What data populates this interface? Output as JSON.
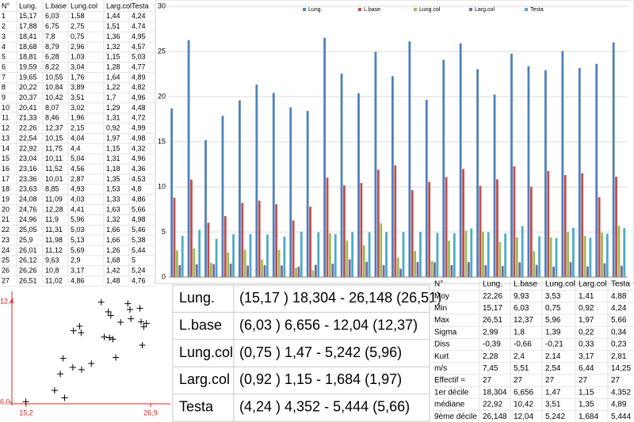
{
  "data_table": {
    "headers": [
      "N°",
      "Lung.",
      "L.base",
      "Lung.col",
      "Larg.col",
      "Testa"
    ],
    "rows": [
      [
        "1",
        "15,17",
        "6,03",
        "1,58",
        "1,44",
        "4,24"
      ],
      [
        "2",
        "17,88",
        "6,75",
        "2,75",
        "1,51",
        "4,74"
      ],
      [
        "3",
        "18,41",
        "7,8",
        "0,75",
        "1,36",
        "4,95"
      ],
      [
        "4",
        "18,68",
        "8,79",
        "2,96",
        "1,32",
        "4,57"
      ],
      [
        "5",
        "18,81",
        "6,28",
        "1,03",
        "1,15",
        "5,03"
      ],
      [
        "6",
        "19,59",
        "8,22",
        "3,04",
        "1,28",
        "4,77"
      ],
      [
        "7",
        "19,65",
        "10,55",
        "1,76",
        "1,64",
        "4,89"
      ],
      [
        "8",
        "20,22",
        "10,84",
        "3,89",
        "1,22",
        "4,82"
      ],
      [
        "9",
        "20,37",
        "10,42",
        "3,51",
        "1,7",
        "4,96"
      ],
      [
        "10",
        "20,41",
        "8,07",
        "3,02",
        "1,29",
        "4,48"
      ],
      [
        "11",
        "21,33",
        "8,46",
        "1,96",
        "1,31",
        "4,72"
      ],
      [
        "12",
        "22,26",
        "12,37",
        "2,15",
        "0,92",
        "4,99"
      ],
      [
        "13",
        "22,54",
        "10,15",
        "4,04",
        "1,97",
        "4,98"
      ],
      [
        "14",
        "22,92",
        "11,75",
        "4,4",
        "1,15",
        "4,32"
      ],
      [
        "15",
        "23,04",
        "10,11",
        "5,04",
        "1,31",
        "4,96"
      ],
      [
        "16",
        "23,16",
        "11,52",
        "4,56",
        "1,18",
        "4,36"
      ],
      [
        "17",
        "23,36",
        "10,01",
        "2,87",
        "1,35",
        "4,53"
      ],
      [
        "18",
        "23,63",
        "8,85",
        "4,93",
        "1,53",
        "4,8"
      ],
      [
        "19",
        "24,08",
        "11,09",
        "4,03",
        "1,33",
        "4,86"
      ],
      [
        "20",
        "24,76",
        "12,28",
        "4,41",
        "1,63",
        "5,66"
      ],
      [
        "21",
        "24,96",
        "11,9",
        "5,96",
        "1,32",
        "4,98"
      ],
      [
        "22",
        "25,05",
        "11,31",
        "5,03",
        "1,66",
        "5,46"
      ],
      [
        "23",
        "25,9",
        "11,98",
        "5,13",
        "1,66",
        "5,38"
      ],
      [
        "24",
        "26,01",
        "11,12",
        "5,69",
        "1,26",
        "5,44"
      ],
      [
        "25",
        "26,12",
        "9,63",
        "2,9",
        "1,68",
        "5"
      ],
      [
        "26",
        "26,26",
        "10,8",
        "3,17",
        "1,42",
        "5,24"
      ],
      [
        "27",
        "26,51",
        "11,02",
        "4,86",
        "1,48",
        "4,76"
      ]
    ]
  },
  "chart_data": [
    {
      "type": "bar",
      "ylim": [
        0,
        30
      ],
      "yticks": [
        0,
        5,
        10,
        15,
        20,
        25,
        30
      ],
      "grid": true,
      "legend": "top",
      "series": [
        {
          "name": "Lung.",
          "color": "#4f81bd",
          "values": [
            18.68,
            26.26,
            15.17,
            17.88,
            19.59,
            21.33,
            20.41,
            18.81,
            18.41,
            26.51,
            22.54,
            20.37,
            24.96,
            22.26,
            26.12,
            19.65,
            24.08,
            25.9,
            23.04,
            20.22,
            24.76,
            23.36,
            22.92,
            25.05,
            23.16,
            23.63,
            26.01
          ]
        },
        {
          "name": "L.base",
          "color": "#c0504d",
          "values": [
            8.79,
            10.8,
            6.03,
            6.75,
            8.22,
            8.46,
            8.07,
            6.28,
            7.8,
            11.02,
            10.15,
            10.42,
            11.9,
            12.37,
            9.63,
            10.55,
            11.09,
            11.98,
            10.11,
            10.84,
            12.28,
            10.01,
            11.75,
            11.31,
            11.52,
            8.85,
            11.12
          ]
        },
        {
          "name": "Lung.col",
          "color": "#9bbb59",
          "values": [
            2.96,
            3.17,
            1.58,
            2.75,
            3.04,
            1.96,
            3.02,
            1.03,
            0.75,
            4.86,
            4.04,
            3.51,
            5.96,
            2.15,
            2.9,
            1.76,
            4.03,
            5.13,
            5.04,
            3.89,
            4.41,
            2.87,
            4.4,
            5.03,
            4.56,
            4.93,
            5.69
          ]
        },
        {
          "name": "Larg.col",
          "color": "#8064a2",
          "values": [
            1.32,
            1.42,
            1.44,
            1.51,
            1.28,
            1.31,
            1.29,
            1.15,
            1.36,
            1.48,
            1.97,
            1.7,
            1.32,
            0.92,
            1.68,
            1.64,
            1.33,
            1.66,
            1.31,
            1.22,
            1.63,
            1.35,
            1.15,
            1.66,
            1.18,
            1.53,
            1.26
          ]
        },
        {
          "name": "Testa",
          "color": "#4bacc6",
          "values": [
            4.57,
            5.24,
            4.24,
            4.74,
            4.77,
            4.72,
            4.48,
            5.03,
            4.95,
            4.76,
            4.98,
            4.96,
            4.98,
            4.99,
            5,
            4.89,
            4.86,
            5.38,
            4.96,
            4.82,
            5.66,
            4.53,
            4.32,
            5.46,
            4.36,
            4.8,
            5.44
          ]
        }
      ]
    },
    {
      "type": "scatter",
      "color": "#000000",
      "axis_color": "#e02020",
      "xlim": [
        15.2,
        26.9
      ],
      "xticks": [
        {
          "value": 15.2,
          "label": "15,2"
        },
        {
          "value": 26.9,
          "label": "26,9"
        }
      ],
      "ylim": [
        6.0,
        12.4
      ],
      "yticks": [
        {
          "value": 6.0,
          "label": "6,0"
        },
        {
          "value": 12.4,
          "label": "12,4"
        }
      ],
      "x": [
        15.17,
        17.88,
        18.41,
        18.68,
        18.81,
        19.59,
        19.65,
        20.22,
        20.37,
        20.41,
        21.33,
        22.26,
        22.54,
        22.92,
        23.04,
        23.16,
        23.36,
        23.63,
        24.08,
        24.76,
        24.96,
        25.05,
        25.9,
        26.01,
        26.12,
        26.26,
        26.51
      ],
      "values": [
        6.03,
        6.75,
        7.8,
        8.79,
        6.28,
        8.22,
        10.55,
        10.84,
        10.42,
        8.07,
        8.46,
        12.37,
        10.15,
        11.75,
        10.11,
        11.52,
        10.01,
        8.85,
        11.09,
        12.28,
        11.9,
        11.31,
        11.98,
        11.12,
        9.63,
        10.8,
        11.02
      ]
    }
  ],
  "ranges": [
    {
      "label": "Lung.",
      "text": "(15,17 ) 18,304 - 26,148 (26,51)"
    },
    {
      "label": "L.base",
      "text": "(6,03 ) 6,656 - 12,04 (12,37)"
    },
    {
      "label": "Lung.col",
      "text": "(0,75 ) 1,47 - 5,242 (5,96)"
    },
    {
      "label": "Larg.col",
      "text": "(0,92 ) 1,15 - 1,684 (1,97)"
    },
    {
      "label": "Testa",
      "text": "(4,24 ) 4,352 - 5,444 (5,66)"
    }
  ],
  "stats_table": {
    "headers": [
      "N°",
      "Lung.",
      "L.base",
      "Lung.col",
      "Larg.col",
      "Testa"
    ],
    "rows": [
      [
        "Moy",
        "22,26",
        "9,93",
        "3,53",
        "1,41",
        "4,88"
      ],
      [
        "Min",
        "15,17",
        "6,03",
        "0,75",
        "0,92",
        "4,24"
      ],
      [
        "Max",
        "26,51",
        "12,37",
        "5,96",
        "1,97",
        "5,66"
      ],
      [
        "Sigma",
        "2,99",
        "1,8",
        "1,39",
        "0,22",
        "0,34"
      ],
      [
        "Diss",
        "-0,39",
        "-0,66",
        "-0,21",
        "0,33",
        "0,23"
      ],
      [
        "Kurt",
        "2,28",
        "2,4",
        "2,14",
        "3,17",
        "2,81"
      ],
      [
        "m/s",
        "7,45",
        "5,51",
        "2,54",
        "6,44",
        "14,25"
      ],
      [
        "Effectif =",
        "27",
        "27",
        "27",
        "27",
        "27"
      ],
      [
        "1er décile",
        "18,304",
        "6,656",
        "1,47",
        "1,15",
        "4,352"
      ],
      [
        "médiane",
        "22,92",
        "10,42",
        "3,51",
        "1,35",
        "4,89"
      ],
      [
        "9ème décile",
        "26,148",
        "12,04",
        "5,242",
        "1,684",
        "5,444"
      ]
    ]
  }
}
